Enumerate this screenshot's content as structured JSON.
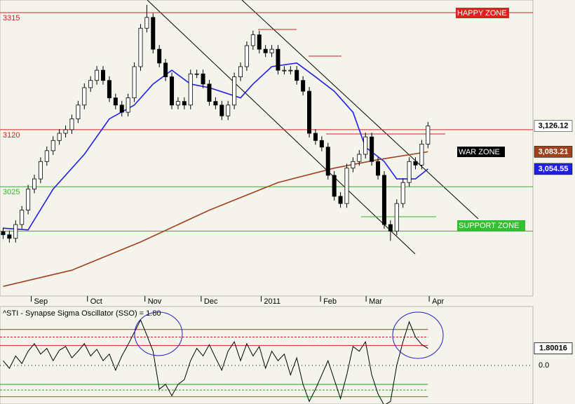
{
  "chart_data": [
    {
      "type": "candlestick",
      "open": [
        2950,
        2945,
        2939,
        2962,
        2986,
        3021,
        3038,
        3067,
        3085,
        3102,
        3114,
        3120,
        3138,
        3161,
        3190,
        3202,
        3219,
        3202,
        3173,
        3161,
        3149,
        3173,
        3225,
        3289,
        3307,
        3254,
        3231,
        3208,
        3161,
        3167,
        3161,
        3213,
        3213,
        3196,
        3167,
        3161,
        3143,
        3161,
        3208,
        3225,
        3260,
        3278,
        3254,
        3248,
        3254,
        3219,
        3219,
        3219,
        3202,
        3184,
        3114,
        3102,
        3091,
        3044,
        3009,
        2997,
        3056,
        3067,
        3079,
        3108,
        3067,
        3044,
        2962,
        2951,
        2997,
        3032,
        3067,
        3061,
        3096
      ],
      "high": [
        2957,
        2952,
        2969,
        2993,
        3028,
        3045,
        3074,
        3092,
        3109,
        3121,
        3127,
        3145,
        3168,
        3197,
        3209,
        3226,
        3226,
        3209,
        3180,
        3168,
        3180,
        3232,
        3296,
        3328,
        3314,
        3261,
        3238,
        3215,
        3174,
        3174,
        3220,
        3220,
        3220,
        3203,
        3174,
        3168,
        3168,
        3215,
        3232,
        3267,
        3285,
        3285,
        3261,
        3261,
        3261,
        3226,
        3226,
        3226,
        3209,
        3191,
        3121,
        3109,
        3098,
        3051,
        3016,
        3063,
        3074,
        3086,
        3115,
        3115,
        3074,
        3051,
        2969,
        3004,
        3039,
        3074,
        3074,
        3103,
        3133
      ],
      "low": [
        2938,
        2932,
        2932,
        2955,
        2979,
        3014,
        3031,
        3060,
        3078,
        3095,
        3107,
        3113,
        3131,
        3154,
        3183,
        3195,
        3195,
        3166,
        3154,
        3142,
        3142,
        3166,
        3218,
        3282,
        3247,
        3224,
        3201,
        3154,
        3154,
        3154,
        3154,
        3206,
        3189,
        3160,
        3154,
        3136,
        3136,
        3154,
        3201,
        3218,
        3253,
        3247,
        3241,
        3241,
        3212,
        3212,
        3212,
        3195,
        3177,
        3107,
        3095,
        3084,
        3037,
        3002,
        2990,
        2990,
        3049,
        3060,
        3072,
        3060,
        3037,
        2955,
        2935,
        2944,
        2990,
        3025,
        3054,
        3054,
        3089
      ],
      "close": [
        2945,
        2939,
        2962,
        2986,
        3021,
        3038,
        3067,
        3085,
        3102,
        3114,
        3120,
        3138,
        3161,
        3190,
        3202,
        3219,
        3202,
        3173,
        3161,
        3149,
        3173,
        3225,
        3289,
        3307,
        3254,
        3231,
        3208,
        3161,
        3167,
        3161,
        3213,
        3213,
        3196,
        3167,
        3161,
        3143,
        3161,
        3208,
        3225,
        3260,
        3278,
        3254,
        3248,
        3254,
        3219,
        3219,
        3219,
        3202,
        3184,
        3114,
        3102,
        3091,
        3044,
        3009,
        2997,
        3056,
        3067,
        3079,
        3108,
        3067,
        3044,
        2962,
        2951,
        2997,
        3032,
        3067,
        3061,
        3096,
        3126.12
      ],
      "last_label": "3,126.12",
      "lines": [
        {
          "color": "#1f1fe6",
          "x": [
            0,
            4,
            8,
            13,
            17,
            21,
            24,
            27,
            30,
            33,
            38,
            40,
            43,
            47,
            50,
            53,
            56,
            58,
            61,
            63,
            66,
            68
          ],
          "values": [
            2956,
            2953,
            3021,
            3079,
            3138,
            3161,
            3196,
            3219,
            3196,
            3190,
            3173,
            3196,
            3225,
            3231,
            3208,
            3184,
            3149,
            3091,
            3067,
            3038,
            3038,
            3054.55
          ],
          "last_label": "3,054.55"
        },
        {
          "color": "#a0401c",
          "x": [
            0,
            11,
            22,
            33,
            44,
            53,
            60,
            68
          ],
          "values": [
            2859,
            2886,
            2933,
            2986,
            3032,
            3056,
            3070,
            3083.21
          ],
          "last_label": "3,083.21"
        }
      ],
      "xlim": [
        -0.5,
        84.8
      ],
      "xticks": [
        {
          "value": 4.5,
          "label": "Sep"
        },
        {
          "value": 13.5,
          "label": "Oct"
        },
        {
          "value": 22.7,
          "label": "Nov"
        },
        {
          "value": 31.7,
          "label": "Dec"
        },
        {
          "value": 41.3,
          "label": "2011"
        },
        {
          "value": 50.8,
          "label": "Feb"
        },
        {
          "value": 58.1,
          "label": "Mar"
        },
        {
          "value": 68.2,
          "label": "Apr"
        }
      ],
      "ylim": [
        2843,
        3336
      ],
      "yticks": [
        3315,
        3120,
        3025
      ],
      "ytick_colors": [
        "#d82020",
        "#d82020",
        "#2fb52f"
      ],
      "support_level": 2951,
      "support_color": "#2fb52f",
      "annotations": [
        "HAPPY ZONE",
        "WAR ZONE",
        "SUPPORT ZONE"
      ]
    },
    {
      "type": "line",
      "title": "^STI - Synapse Sigma Oscillator (SSO) = 1.80",
      "color": "#000000",
      "values": [
        0.5,
        -0.3,
        1.0,
        0.2,
        1.5,
        2.3,
        1.2,
        1.8,
        0.5,
        1.6,
        2.0,
        0.8,
        1.5,
        2.3,
        1.0,
        1.7,
        0.5,
        1.2,
        -0.5,
        1.0,
        2.2,
        3.5,
        4.8,
        3.2,
        1.5,
        -2.5,
        -2.0,
        -3.2,
        -2.0,
        -1.5,
        0.5,
        1.8,
        1.0,
        2.2,
        0.8,
        -0.5,
        1.5,
        2.5,
        0.5,
        2.3,
        1.0,
        2.0,
        -0.3,
        1.5,
        0.5,
        1.2,
        -1.0,
        0.8,
        -2.0,
        -3.8,
        -2.5,
        -1.0,
        0.5,
        -1.5,
        -3.5,
        -1.0,
        2.0,
        1.5,
        2.5,
        -1.0,
        -3.0,
        -4.2,
        -3.8,
        0.0,
        2.5,
        4.6,
        3.0,
        2.2,
        1.80016
      ],
      "xlim": [
        -0.5,
        84.8
      ],
      "ylim": [
        -4.07,
        6.22
      ],
      "yticks": [
        {
          "value": 0,
          "label": "0.0"
        }
      ],
      "bands": [
        {
          "value": 3.8,
          "color": "#d02020",
          "dashed": false
        },
        {
          "value": 3.0,
          "color": "#d02020",
          "dashed": true
        },
        {
          "value": 2.1,
          "color": "#d02020",
          "dashed": false
        },
        {
          "value": -2.0,
          "color": "#20a020",
          "dashed": false
        },
        {
          "value": -2.6,
          "color": "#20a020",
          "dashed": true
        },
        {
          "value": -3.3,
          "color": "#20a020",
          "dashed": false
        }
      ]
    }
  ]
}
